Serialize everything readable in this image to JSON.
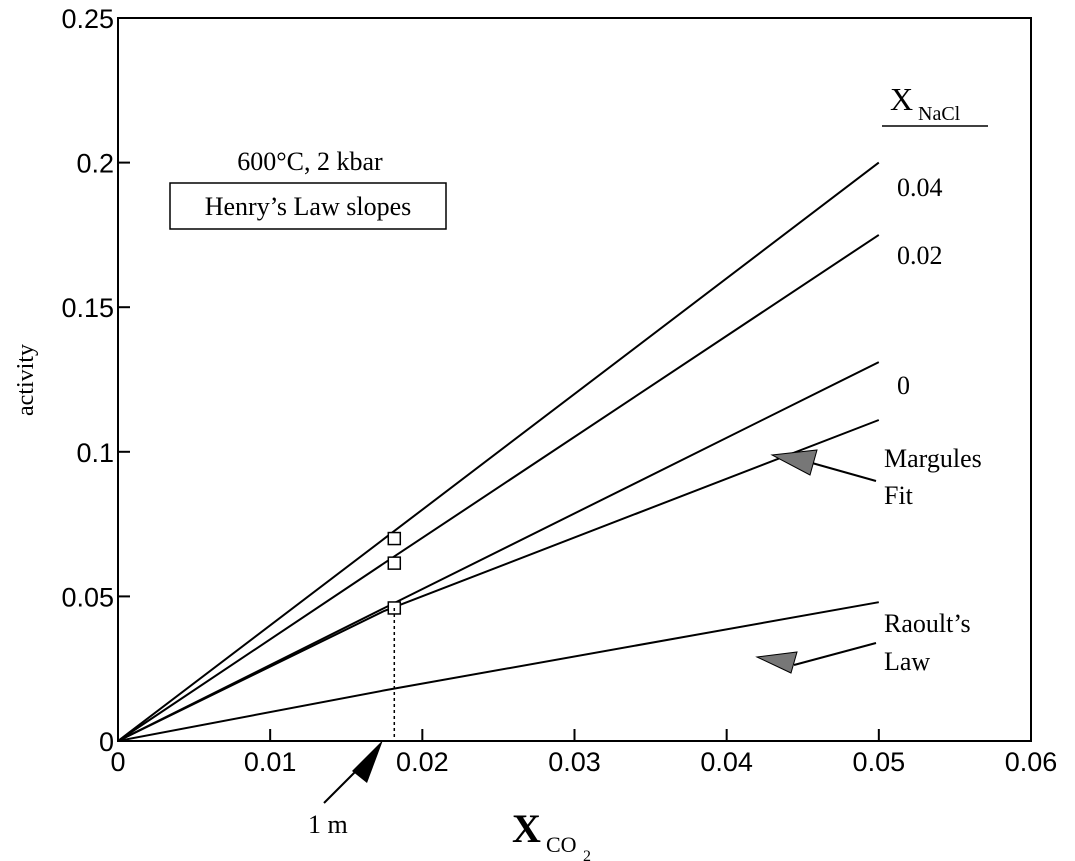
{
  "chart_data": {
    "type": "line",
    "xlabel_main": "X",
    "xlabel_sub": "CO",
    "xlabel_subsub": "2",
    "ylabel": "activity",
    "xlim": [
      0,
      0.06
    ],
    "ylim": [
      0,
      0.25
    ],
    "x_ticks": [
      0,
      0.01,
      0.02,
      0.03,
      0.04,
      0.05,
      0.06
    ],
    "x_tick_labels": [
      "0",
      "0.01",
      "0.02",
      "0.03",
      "0.04",
      "0.05",
      "0.06"
    ],
    "y_ticks": [
      0,
      0.05,
      0.1,
      0.15,
      0.2,
      0.25
    ],
    "y_tick_labels": [
      "0",
      "0.05",
      "0.1",
      "0.15",
      "0.2",
      "0.25"
    ],
    "grid": false,
    "conditions_label": "600°C, 2 kbar",
    "box_label": "Henry’s Law slopes",
    "legend_title_main": "X",
    "legend_title_sub": "NaCl",
    "series": [
      {
        "name": "0.04",
        "x": [
          0,
          0.0175,
          0.05
        ],
        "y": [
          0,
          0.07,
          0.2
        ]
      },
      {
        "name": "0.02",
        "x": [
          0,
          0.0175,
          0.05
        ],
        "y": [
          0,
          0.0615,
          0.175
        ]
      },
      {
        "name": "0",
        "x": [
          0,
          0.0175,
          0.05
        ],
        "y": [
          0,
          0.046,
          0.131
        ]
      },
      {
        "name": "Margules Fit",
        "x": [
          0,
          0.0175,
          0.05
        ],
        "y": [
          0,
          0.045,
          0.111
        ]
      },
      {
        "name": "Raoult’s Law",
        "x": [
          0,
          0.0175,
          0.05
        ],
        "y": [
          0,
          0.0175,
          0.048
        ]
      }
    ],
    "markers": [
      {
        "x": 0.0175,
        "y": 0.07
      },
      {
        "x": 0.0175,
        "y": 0.0615
      },
      {
        "x": 0.0175,
        "y": 0.046
      }
    ],
    "dropline_x": 0.0175,
    "dropline_y": 0.046,
    "annotations": {
      "one_molal": "1 m",
      "margules_line1": "Margules",
      "margules_line2": "Fit",
      "raoult_line1": "Raoult’s",
      "raoult_line2": "Law"
    }
  }
}
